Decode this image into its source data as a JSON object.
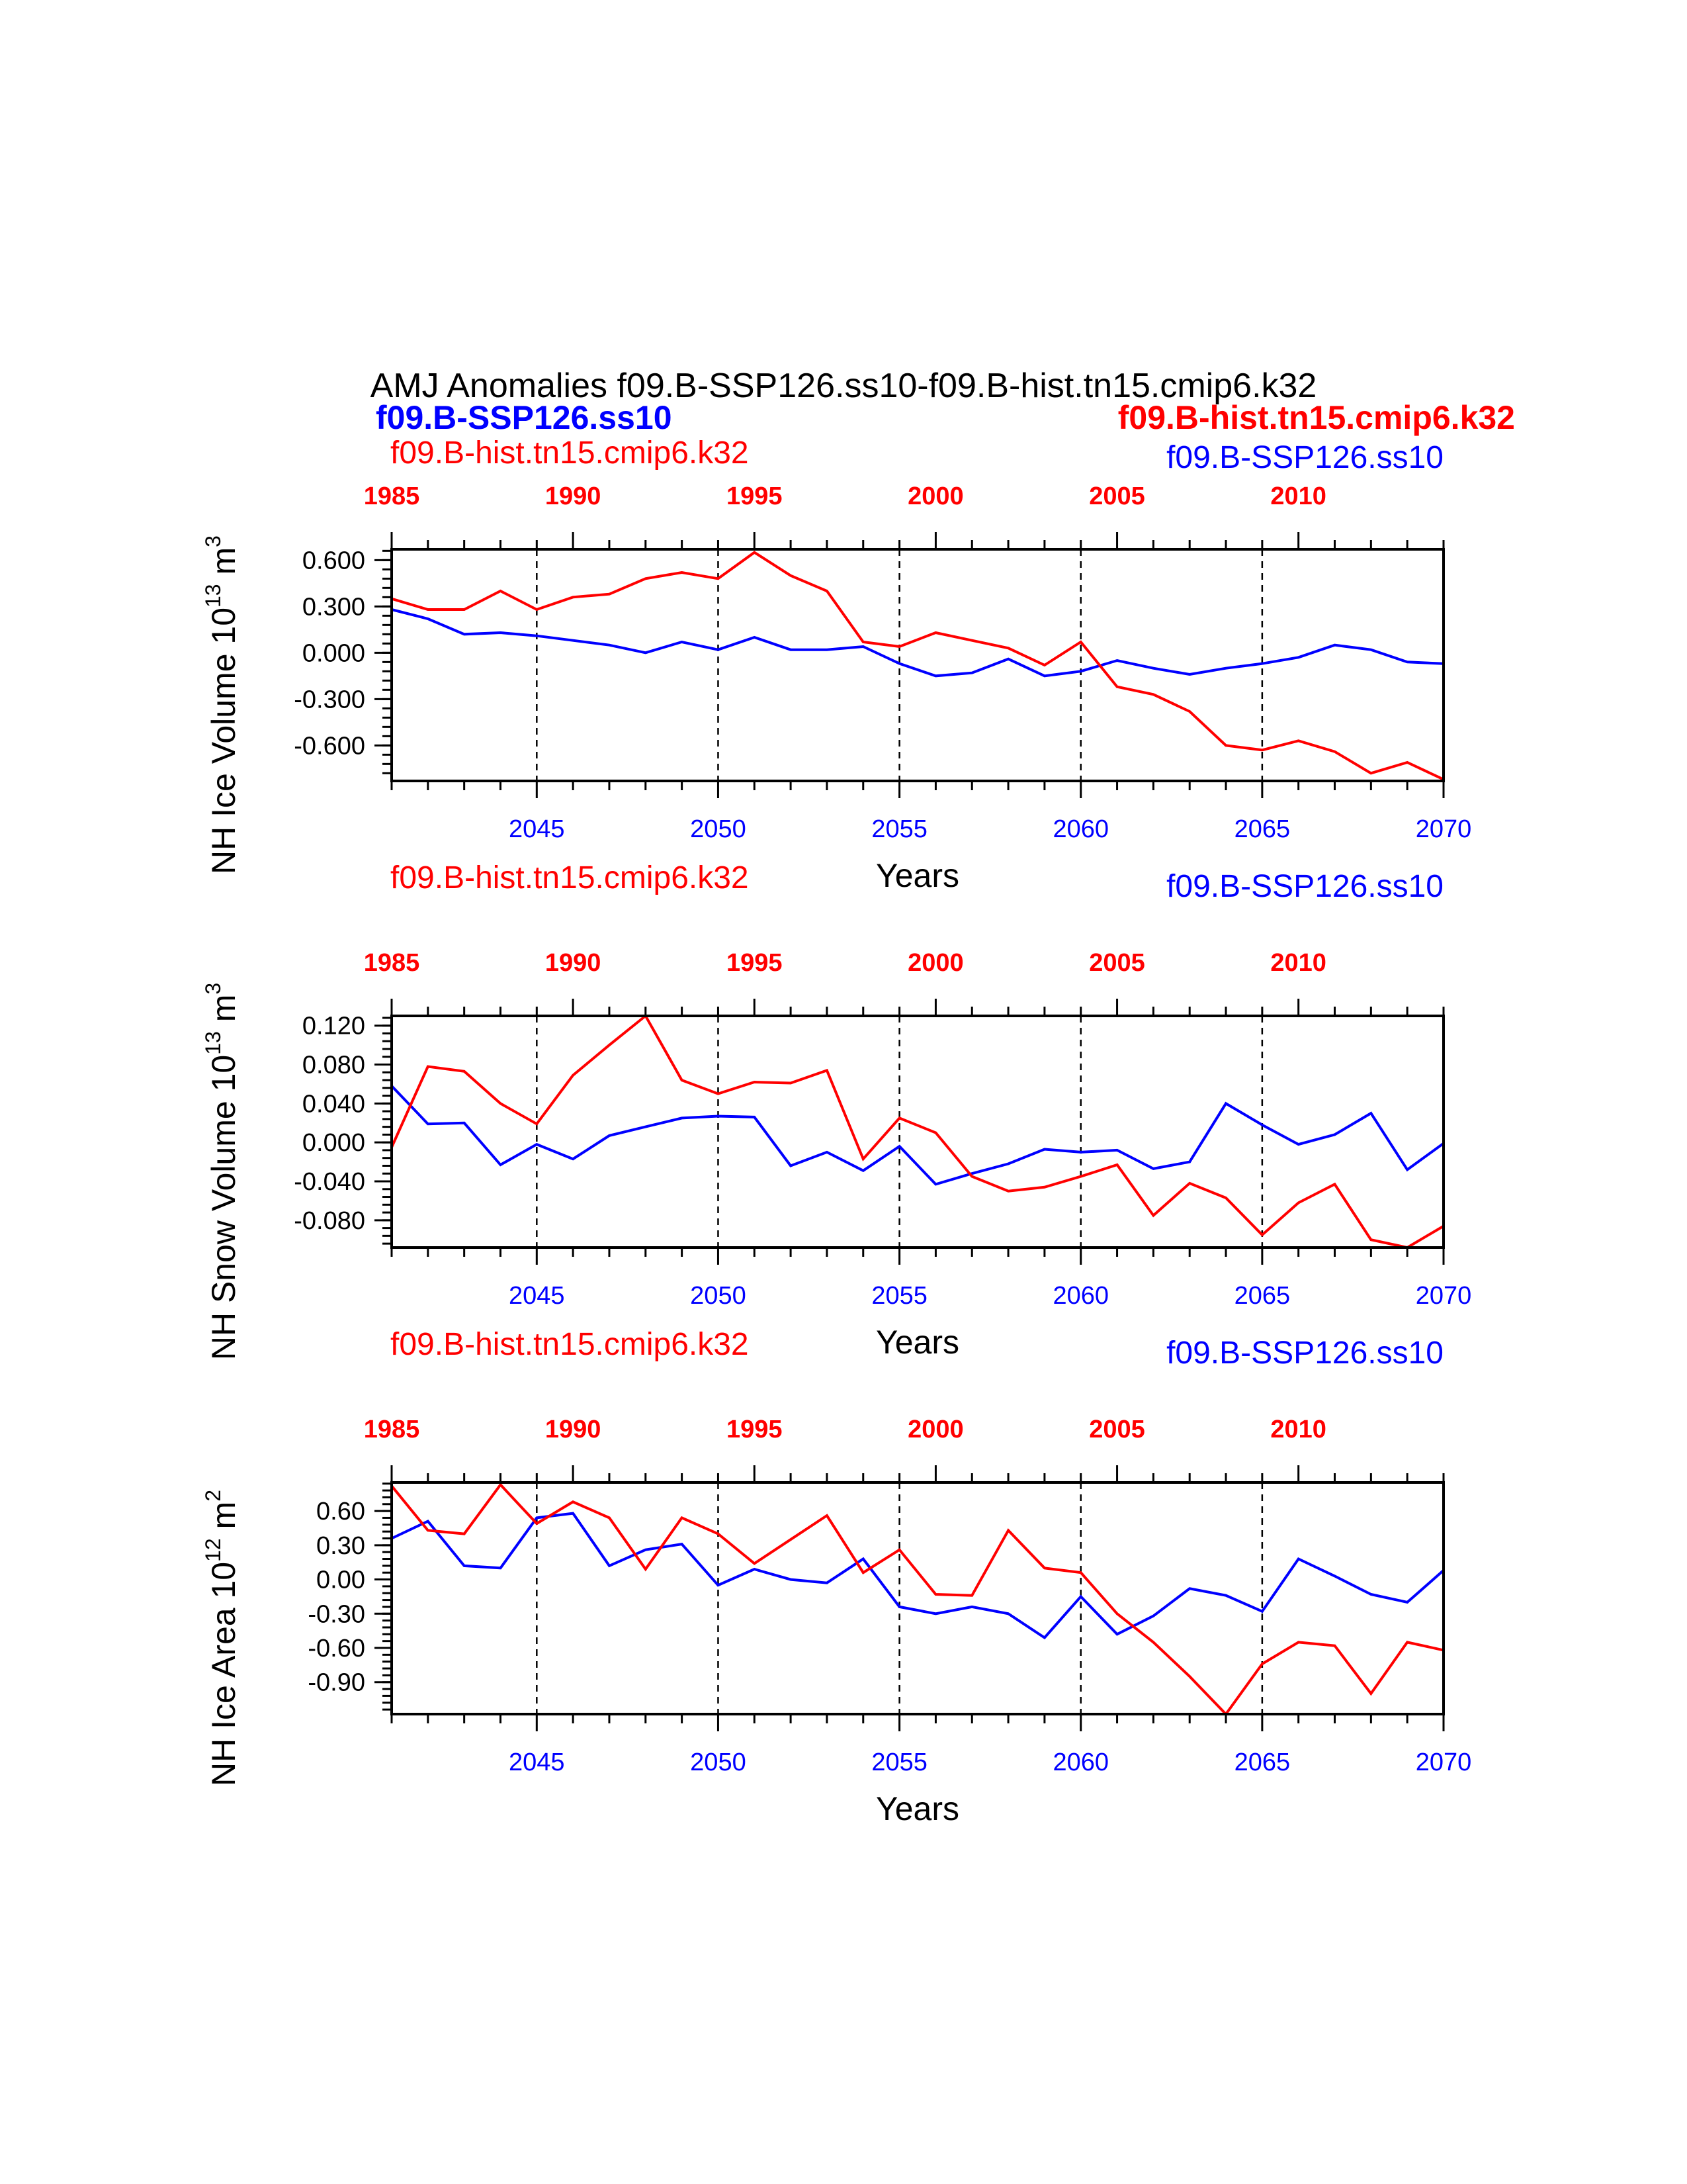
{
  "header": {
    "title": "AMJ Anomalies f09.B-SSP126.ss10-f09.B-hist.tn15.cmip6.k32",
    "left_bold": "f09.B-SSP126.ss10",
    "right_bold": "f09.B-hist.tn15.cmip6.k32"
  },
  "colors": {
    "future": "#0000ff",
    "hist": "#ff0000",
    "axis": "#000000"
  },
  "chart_data": [
    {
      "type": "line",
      "ylabel": "NH Ice Volume 10",
      "ylabel_sup": "13",
      "ylabel_unit": "m",
      "ylabel_unit_sup": "3",
      "xlabel": "Years",
      "left_label": "f09.B-hist.tn15.cmip6.k32",
      "right_label": "f09.B-SSP126.ss10",
      "ylim": [
        -0.83,
        0.67
      ],
      "yticks": [
        0.6,
        0.3,
        0.0,
        -0.3,
        -0.6
      ],
      "ytick_labels": [
        "0.600",
        "0.300",
        "0.000",
        "-0.300",
        "-0.600"
      ],
      "bottom_xticks": [
        2045,
        2050,
        2055,
        2060,
        2065,
        2070
      ],
      "top_xticks": [
        1985,
        1990,
        1995,
        2000,
        2005,
        2010
      ],
      "dashed_vlines": [
        2045,
        2050,
        2055,
        2060,
        2065
      ],
      "series": [
        {
          "name": "f09.B-SSP126.ss10",
          "color": "#0000ff",
          "x": [
            2041,
            2042,
            2043,
            2044,
            2045,
            2046,
            2047,
            2048,
            2049,
            2050,
            2051,
            2052,
            2053,
            2054,
            2055,
            2056,
            2057,
            2058,
            2059,
            2060,
            2061,
            2062,
            2063,
            2064,
            2065,
            2066,
            2067,
            2068,
            2069,
            2070
          ],
          "values": [
            0.28,
            0.22,
            0.12,
            0.13,
            0.11,
            0.08,
            0.05,
            0.0,
            0.07,
            0.02,
            0.1,
            0.02,
            0.02,
            0.04,
            -0.07,
            -0.15,
            -0.13,
            -0.04,
            -0.15,
            -0.12,
            -0.05,
            -0.1,
            -0.14,
            -0.1,
            -0.07,
            -0.03,
            0.05,
            0.02,
            -0.06,
            -0.07
          ]
        },
        {
          "name": "f09.B-hist.tn15.cmip6.k32",
          "color": "#ff0000",
          "x": [
            1985,
            1986,
            1987,
            1988,
            1989,
            1990,
            1991,
            1992,
            1993,
            1994,
            1995,
            1996,
            1997,
            1998,
            1999,
            2000,
            2001,
            2002,
            2003,
            2004,
            2005,
            2006,
            2007,
            2008,
            2009,
            2010,
            2011,
            2012,
            2013,
            2014
          ],
          "values": [
            0.35,
            0.28,
            0.28,
            0.4,
            0.28,
            0.36,
            0.38,
            0.48,
            0.52,
            0.48,
            0.65,
            0.5,
            0.4,
            0.07,
            0.04,
            0.13,
            0.08,
            0.03,
            -0.08,
            0.07,
            -0.22,
            -0.27,
            -0.38,
            -0.6,
            -0.63,
            -0.57,
            -0.64,
            -0.78,
            -0.71,
            -0.82
          ]
        }
      ]
    },
    {
      "type": "line",
      "ylabel": "NH Snow Volume 10",
      "ylabel_sup": "13",
      "ylabel_unit": "m",
      "ylabel_unit_sup": "3",
      "xlabel": "Years",
      "left_label": "f09.B-hist.tn15.cmip6.k32",
      "right_label": "f09.B-SSP126.ss10",
      "ylim": [
        -0.108,
        0.13
      ],
      "yticks": [
        0.12,
        0.08,
        0.04,
        0.0,
        -0.04,
        -0.08
      ],
      "ytick_labels": [
        "0.120",
        "0.080",
        "0.040",
        "0.000",
        "-0.040",
        "-0.080"
      ],
      "bottom_xticks": [
        2045,
        2050,
        2055,
        2060,
        2065,
        2070
      ],
      "top_xticks": [
        1985,
        1990,
        1995,
        2000,
        2005,
        2010
      ],
      "dashed_vlines": [
        2045,
        2050,
        2055,
        2060,
        2065
      ],
      "series": [
        {
          "name": "f09.B-SSP126.ss10",
          "color": "#0000ff",
          "x": [
            2041,
            2042,
            2043,
            2044,
            2045,
            2046,
            2047,
            2048,
            2049,
            2050,
            2051,
            2052,
            2053,
            2054,
            2055,
            2056,
            2057,
            2058,
            2059,
            2060,
            2061,
            2062,
            2063,
            2064,
            2065,
            2066,
            2067,
            2068,
            2069,
            2070
          ],
          "values": [
            0.058,
            0.019,
            0.02,
            -0.023,
            -0.002,
            -0.017,
            0.007,
            0.016,
            0.025,
            0.027,
            0.026,
            -0.024,
            -0.01,
            -0.029,
            -0.004,
            -0.043,
            -0.032,
            -0.022,
            -0.007,
            -0.01,
            -0.008,
            -0.027,
            -0.02,
            0.04,
            0.018,
            -0.002,
            0.008,
            0.03,
            -0.028,
            -0.001
          ]
        },
        {
          "name": "f09.B-hist.tn15.cmip6.k32",
          "color": "#ff0000",
          "x": [
            1985,
            1986,
            1987,
            1988,
            1989,
            1990,
            1991,
            1992,
            1993,
            1994,
            1995,
            1996,
            1997,
            1998,
            1999,
            2000,
            2001,
            2002,
            2003,
            2004,
            2005,
            2006,
            2007,
            2008,
            2009,
            2010,
            2011,
            2012,
            2013,
            2014
          ],
          "values": [
            -0.005,
            0.078,
            0.073,
            0.04,
            0.019,
            0.069,
            0.1,
            0.13,
            0.064,
            0.05,
            0.062,
            0.061,
            0.074,
            -0.017,
            0.025,
            0.01,
            -0.035,
            -0.05,
            -0.046,
            -0.035,
            -0.023,
            -0.075,
            -0.042,
            -0.057,
            -0.095,
            -0.062,
            -0.043,
            -0.1,
            -0.108,
            -0.086
          ]
        }
      ]
    },
    {
      "type": "line",
      "ylabel": "NH Ice Area 10",
      "ylabel_sup": "12",
      "ylabel_unit": "m",
      "ylabel_unit_sup": "2",
      "xlabel": "Years",
      "left_label": "f09.B-hist.tn15.cmip6.k32",
      "right_label": "f09.B-SSP126.ss10",
      "ylim": [
        -1.18,
        0.85
      ],
      "yticks": [
        0.6,
        0.3,
        0.0,
        -0.3,
        -0.6,
        -0.9
      ],
      "ytick_labels": [
        "0.60",
        "0.30",
        "0.00",
        "-0.30",
        "-0.60",
        "-0.90"
      ],
      "bottom_xticks": [
        2045,
        2050,
        2055,
        2060,
        2065,
        2070
      ],
      "top_xticks": [
        1985,
        1990,
        1995,
        2000,
        2005,
        2010
      ],
      "dashed_vlines": [
        2045,
        2050,
        2055,
        2060,
        2065
      ],
      "series": [
        {
          "name": "f09.B-SSP126.ss10",
          "color": "#0000ff",
          "x": [
            2041,
            2042,
            2043,
            2044,
            2045,
            2046,
            2047,
            2048,
            2049,
            2050,
            2051,
            2052,
            2053,
            2054,
            2055,
            2056,
            2057,
            2058,
            2059,
            2060,
            2061,
            2062,
            2063,
            2064,
            2065,
            2066,
            2067,
            2068,
            2069,
            2070
          ],
          "values": [
            0.36,
            0.51,
            0.12,
            0.1,
            0.54,
            0.58,
            0.12,
            0.26,
            0.31,
            -0.05,
            0.09,
            0.0,
            -0.03,
            0.18,
            -0.24,
            -0.3,
            -0.24,
            -0.3,
            -0.51,
            -0.15,
            -0.48,
            -0.32,
            -0.08,
            -0.14,
            -0.28,
            0.18,
            0.03,
            -0.13,
            -0.2,
            0.08
          ]
        },
        {
          "name": "f09.B-hist.tn15.cmip6.k32",
          "color": "#ff0000",
          "x": [
            1985,
            1986,
            1987,
            1988,
            1989,
            1990,
            1991,
            1992,
            1993,
            1994,
            1995,
            1996,
            1997,
            1998,
            1999,
            2000,
            2001,
            2002,
            2003,
            2004,
            2005,
            2006,
            2007,
            2008,
            2009,
            2010,
            2011,
            2012,
            2013,
            2014
          ],
          "values": [
            0.82,
            0.43,
            0.4,
            0.83,
            0.49,
            0.68,
            0.54,
            0.09,
            0.54,
            0.4,
            0.14,
            0.35,
            0.56,
            0.06,
            0.26,
            -0.13,
            -0.14,
            0.43,
            0.1,
            0.06,
            -0.3,
            -0.55,
            -0.85,
            -1.18,
            -0.74,
            -0.55,
            -0.58,
            -1.0,
            -0.55,
            -0.62
          ]
        }
      ]
    }
  ]
}
